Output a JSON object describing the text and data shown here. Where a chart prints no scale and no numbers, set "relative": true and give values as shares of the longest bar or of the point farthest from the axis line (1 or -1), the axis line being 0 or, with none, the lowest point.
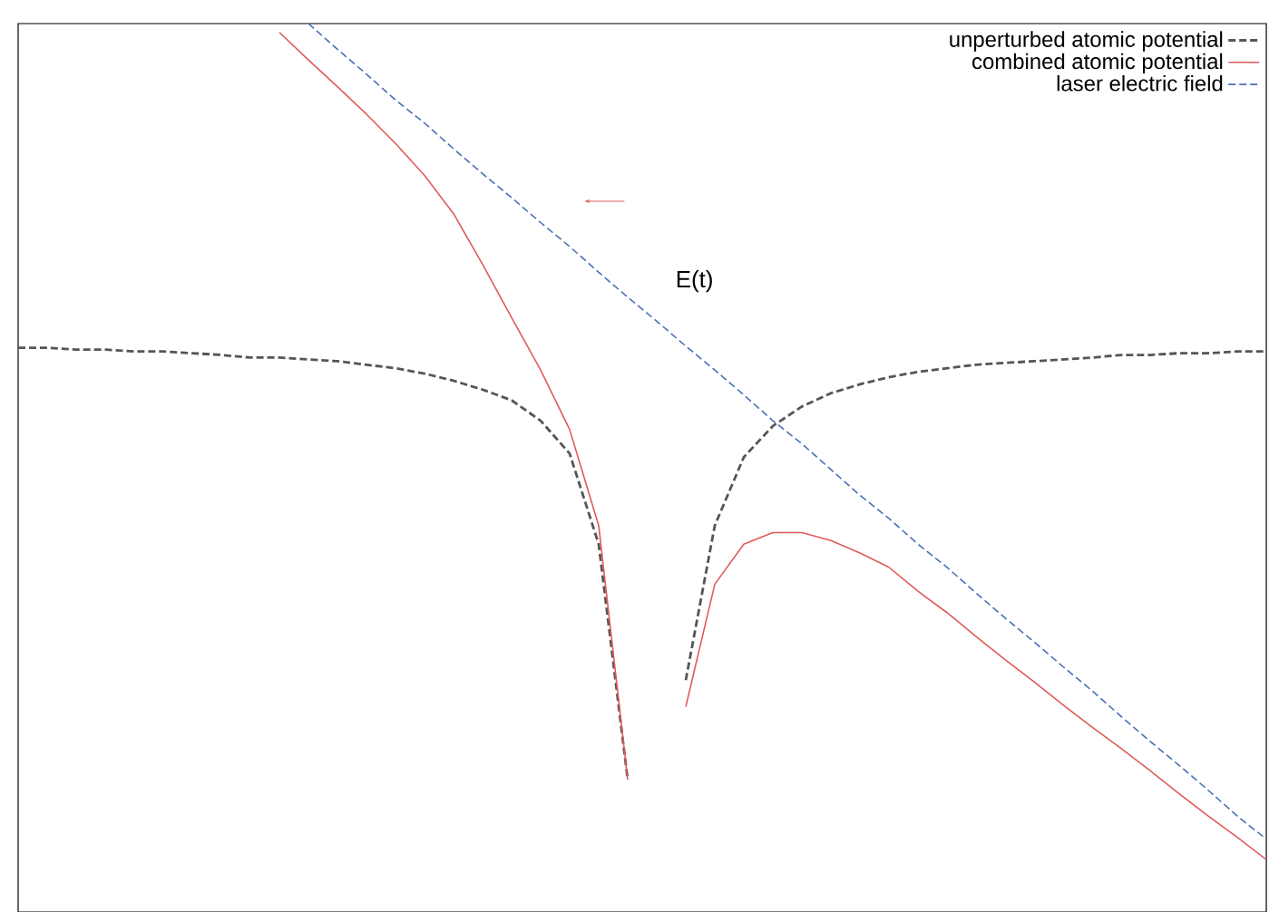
{
  "chart_data": {
    "type": "line",
    "relative": true,
    "legend": "top right",
    "categories": [
      null,
      null,
      null,
      null,
      null,
      null,
      null,
      null,
      null,
      null,
      null,
      null,
      null,
      null,
      null,
      null,
      null,
      null,
      null,
      null,
      null,
      null,
      null,
      null,
      null,
      null,
      null,
      null,
      null,
      null,
      null,
      null,
      null,
      null,
      null,
      null,
      null,
      null,
      null,
      null,
      null,
      null,
      null,
      null
    ],
    "series": [
      {
        "name": "unperturbed atomic potential",
        "color": "#555555",
        "line_style": "dashed",
        "values": [
          0.635,
          0.635,
          0.633,
          0.633,
          0.631,
          0.631,
          0.629,
          0.627,
          0.624,
          0.624,
          0.622,
          0.62,
          0.616,
          0.612,
          0.606,
          0.598,
          0.588,
          0.576,
          0.553,
          0.516,
          0.414,
          0.149,
          null,
          0.261,
          0.435,
          0.512,
          0.547,
          0.569,
          0.584,
          0.594,
          0.602,
          0.608,
          0.612,
          0.616,
          0.618,
          0.62,
          0.622,
          0.624,
          0.627,
          0.627,
          0.629,
          0.629,
          0.631,
          0.631
        ]
      },
      {
        "name": "combined atomic potential",
        "color": "#e05a5a",
        "line_style": "solid",
        "values": [
          null,
          null,
          null,
          null,
          null,
          null,
          null,
          null,
          null,
          0.99,
          0.959,
          0.929,
          0.898,
          0.865,
          0.829,
          0.786,
          0.729,
          0.669,
          0.61,
          0.543,
          0.435,
          0.149,
          null,
          0.231,
          0.369,
          0.414,
          0.427,
          0.427,
          0.418,
          0.404,
          0.388,
          0.361,
          0.337,
          0.31,
          0.284,
          0.259,
          0.233,
          0.208,
          0.184,
          0.159,
          0.133,
          0.108,
          0.084,
          0.059
        ]
      },
      {
        "name": "laser electric field",
        "color": "#4a6fb5",
        "line_style": "dashed",
        "values": [
          null,
          null,
          null,
          null,
          null,
          null,
          null,
          null,
          null,
          null,
          1,
          0.971,
          0.943,
          0.914,
          0.888,
          0.859,
          0.831,
          0.804,
          0.776,
          0.749,
          0.72,
          0.692,
          0.665,
          0.637,
          0.61,
          0.582,
          0.553,
          0.527,
          0.498,
          0.469,
          0.443,
          0.414,
          0.388,
          0.359,
          0.331,
          0.304,
          0.276,
          0.249,
          0.22,
          0.192,
          0.165,
          0.137,
          0.108,
          0.082
        ]
      }
    ],
    "annotations": [
      "E(t)"
    ]
  }
}
